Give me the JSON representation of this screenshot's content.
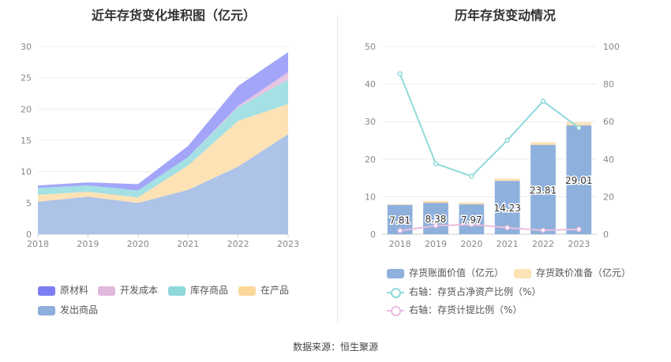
{
  "left_chart": {
    "title": "近年存货变化堆积图（亿元）"
  },
  "right_chart": {
    "title": "历年存货变动情况"
  },
  "source": "数据来源：恒生聚源",
  "chart_data": [
    {
      "type": "area",
      "stacked": true,
      "title": "近年存货变化堆积图（亿元）",
      "x": [
        "2018",
        "2019",
        "2020",
        "2021",
        "2022",
        "2023"
      ],
      "ylim": [
        0,
        30
      ],
      "yticks": [
        0,
        5,
        10,
        15,
        20,
        25,
        30
      ],
      "grid": true,
      "legend_position": "bottom-left",
      "series": [
        {
          "name": "发出商品",
          "color": "#adc3e8",
          "values": [
            5.2,
            6.0,
            5.0,
            7.1,
            10.8,
            16.0
          ]
        },
        {
          "name": "在产品",
          "color": "#fde2b6",
          "values": [
            1.1,
            0.8,
            0.9,
            3.9,
            7.3,
            4.8
          ]
        },
        {
          "name": "库存商品",
          "color": "#a4e0e4",
          "values": [
            1.1,
            1.0,
            1.1,
            1.3,
            2.2,
            3.9
          ]
        },
        {
          "name": "开发成本",
          "color": "#e7c4e3",
          "values": [
            0.0,
            0.0,
            0.0,
            0.0,
            0.2,
            1.2
          ]
        },
        {
          "name": "原材料",
          "color": "#a3a6f8",
          "values": [
            0.4,
            0.5,
            1.0,
            1.8,
            3.2,
            3.2
          ]
        }
      ]
    },
    {
      "type": "bar",
      "title": "历年存货变动情况",
      "categories": [
        "2018",
        "2019",
        "2020",
        "2021",
        "2022",
        "2023"
      ],
      "ylim": [
        0,
        50
      ],
      "yticks": [
        0,
        10,
        20,
        30,
        40,
        50
      ],
      "y2lim": [
        0,
        100
      ],
      "y2ticks": [
        0,
        20,
        40,
        60,
        80,
        100
      ],
      "legend_position": "bottom",
      "series": [
        {
          "name": "存货账面价值（亿元）",
          "type": "bar",
          "color": "#8eb0dc",
          "values": [
            7.81,
            8.38,
            7.97,
            14.23,
            23.81,
            29.01
          ],
          "labels": [
            "7.81",
            "8.38",
            "7.97",
            "14.23",
            "23.81",
            "29.01"
          ]
        },
        {
          "name": "存货跌价准备（亿元）",
          "type": "bar-stack",
          "color": "#fde2b6",
          "values": [
            0.2,
            0.5,
            0.5,
            0.6,
            0.7,
            0.8
          ]
        },
        {
          "name": "右轴：存货占净资产比例（%）",
          "type": "line",
          "axis": "right",
          "color": "#8fd9dc",
          "values": [
            85.5,
            37.6,
            30.9,
            50.1,
            70.9,
            56.7
          ]
        },
        {
          "name": "右轴：存货计提比例（%）",
          "type": "line",
          "axis": "right",
          "color": "#eabde0",
          "values": [
            1.9,
            4.6,
            5.2,
            3.5,
            2.1,
            2.6
          ]
        }
      ]
    }
  ]
}
